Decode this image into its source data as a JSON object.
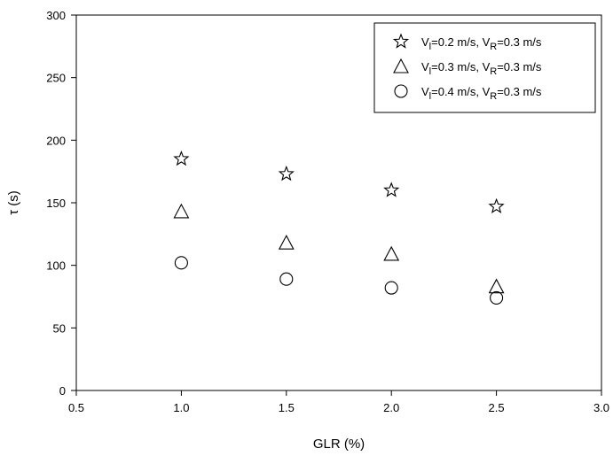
{
  "chart_data": {
    "type": "scatter",
    "xlabel": "GLR (%)",
    "ylabel": "τ (s)",
    "xlim": [
      0.5,
      3.0
    ],
    "ylim": [
      0,
      300
    ],
    "xticks": [
      "0.5",
      "1.0",
      "1.5",
      "2.0",
      "2.5",
      "3.0"
    ],
    "yticks": [
      "0",
      "50",
      "100",
      "150",
      "200",
      "250",
      "300"
    ],
    "grid": false,
    "legend_position": "top-right",
    "series": [
      {
        "legend": {
          "v1": "V",
          "v1_sub": "l",
          "v1_val": "=0.2 m/s, ",
          "v2": "V",
          "v2_sub": "R",
          "v2_val": "=0.3 m/s"
        },
        "marker": "star",
        "x": [
          1.0,
          1.5,
          2.0,
          2.5
        ],
        "y": [
          185,
          173,
          160,
          147
        ]
      },
      {
        "legend": {
          "v1": "V",
          "v1_sub": "l",
          "v1_val": "=0.3 m/s, ",
          "v2": "V",
          "v2_sub": "R",
          "v2_val": "=0.3 m/s"
        },
        "marker": "triangle",
        "x": [
          1.0,
          1.5,
          2.0,
          2.5
        ],
        "y": [
          143,
          118,
          109,
          83
        ]
      },
      {
        "legend": {
          "v1": "V",
          "v1_sub": "l",
          "v1_val": "=0.4 m/s, ",
          "v2": "V",
          "v2_sub": "R",
          "v2_val": "=0.3 m/s"
        },
        "marker": "circle",
        "x": [
          1.0,
          1.5,
          2.0,
          2.5
        ],
        "y": [
          102,
          89,
          82,
          74
        ]
      }
    ]
  }
}
